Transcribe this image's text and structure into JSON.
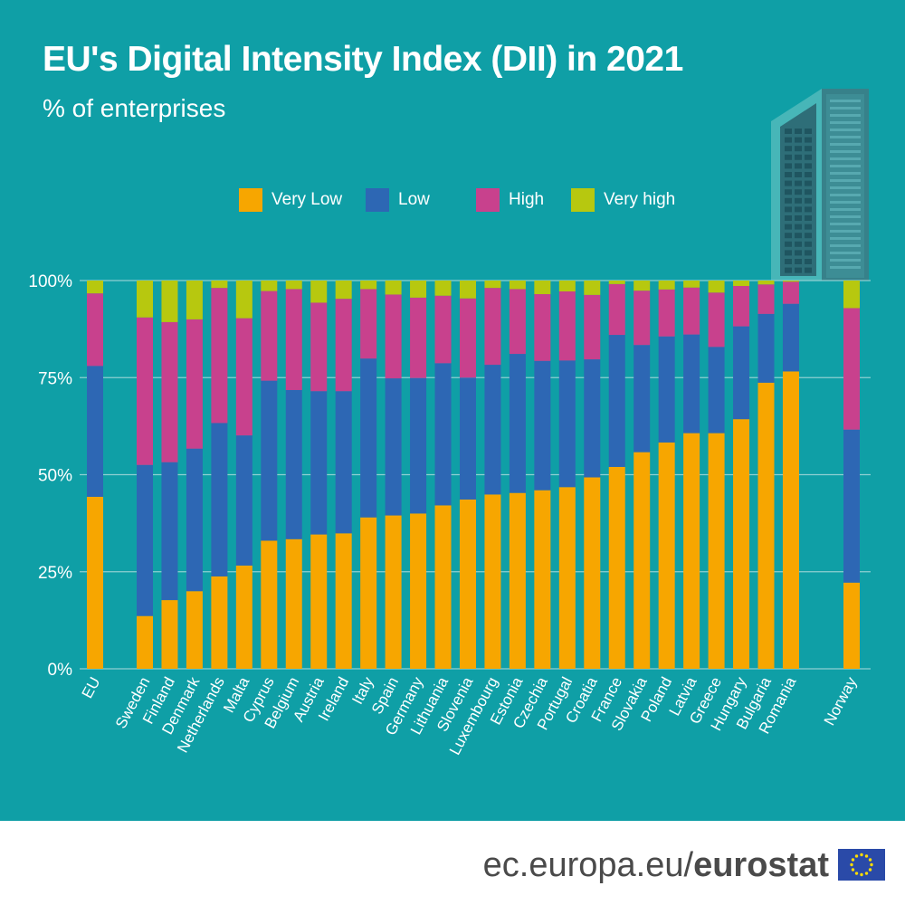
{
  "title": "EU's Digital Intensity Index (DII) in 2021",
  "subtitle": "% of enterprises",
  "footer": {
    "domain": "ec.europa.eu/",
    "brand": "eurostat"
  },
  "colors": {
    "background": "#0f9fa6",
    "very_low": "#f7a600",
    "low": "#2d67b4",
    "high": "#c8418d",
    "very_high": "#b7c80f",
    "gridline": "#8fcfd2",
    "flag": "#2a4aa8",
    "flag_stars": "#ffdd00"
  },
  "icons": {
    "decoration": "office-building-icon",
    "flag": "eu-flag-icon"
  },
  "chart_data": {
    "type": "bar",
    "stacked": true,
    "categories": [
      "EU",
      "Sweden",
      "Finland",
      "Denmark",
      "Netherlands",
      "Malta",
      "Cyprus",
      "Belgium",
      "Austria",
      "Ireland",
      "Italy",
      "Spain",
      "Germany",
      "Lithuania",
      "Slovenia",
      "Luxembourg",
      "Estonia",
      "Czechia",
      "Portugal",
      "Croatia",
      "France",
      "Slovakia",
      "Poland",
      "Latvia",
      "Greece",
      "Hungary",
      "Bulgaria",
      "Romania",
      "Norway"
    ],
    "series": [
      {
        "name": "Very Low",
        "values": [
          44.3,
          13.6,
          17.7,
          20.0,
          23.8,
          26.6,
          33.0,
          33.4,
          34.6,
          34.9,
          39.0,
          39.5,
          40.0,
          42.1,
          43.6,
          44.9,
          45.3,
          46.0,
          46.8,
          49.3,
          52.0,
          55.8,
          58.3,
          60.7,
          60.7,
          64.3,
          73.7,
          76.6,
          22.2
        ]
      },
      {
        "name": "Low",
        "values": [
          33.7,
          38.9,
          35.5,
          36.7,
          39.5,
          33.5,
          41.2,
          38.4,
          36.9,
          36.6,
          40.9,
          35.3,
          34.9,
          36.6,
          31.4,
          33.4,
          35.8,
          33.3,
          32.6,
          30.4,
          34.0,
          27.6,
          27.3,
          25.4,
          22.2,
          23.9,
          17.7,
          17.4,
          39.4
        ]
      },
      {
        "name": "High",
        "values": [
          18.7,
          38.0,
          36.1,
          33.3,
          34.8,
          30.2,
          23.1,
          26.0,
          22.8,
          23.8,
          17.9,
          21.6,
          20.7,
          17.4,
          20.4,
          19.8,
          16.7,
          17.2,
          17.8,
          16.6,
          13.1,
          14.0,
          12.1,
          12.1,
          14.0,
          10.4,
          7.6,
          5.7,
          31.3
        ]
      },
      {
        "name": "Very high",
        "values": [
          3.3,
          9.5,
          10.7,
          10.0,
          1.9,
          9.7,
          2.7,
          2.2,
          5.7,
          4.7,
          2.2,
          3.6,
          4.4,
          3.9,
          4.6,
          1.9,
          2.2,
          3.5,
          2.8,
          3.7,
          0.9,
          2.6,
          2.3,
          1.8,
          3.1,
          1.4,
          1.0,
          0.3,
          7.1
        ]
      }
    ],
    "y_ticks": [
      "0%",
      "25%",
      "50%",
      "75%",
      "100%"
    ],
    "ylim": [
      0,
      100
    ],
    "legend_position": "top",
    "grid": true,
    "xlabel": "",
    "ylabel": ""
  }
}
